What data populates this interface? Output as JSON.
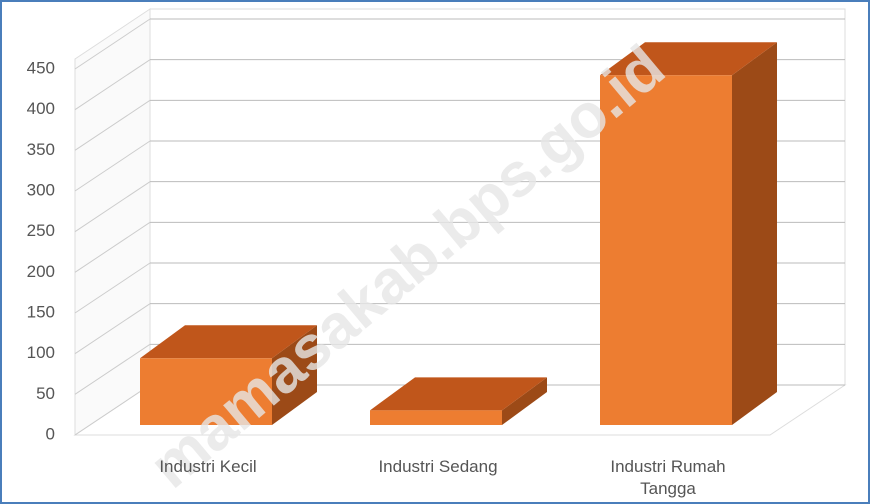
{
  "chart_data": {
    "type": "bar3d",
    "categories": [
      "Industri Kecil",
      "Industri Sedang",
      "Industri Rumah Tangga"
    ],
    "values": [
      82,
      18,
      430
    ],
    "color": "#ed7d31",
    "ylim": [
      0,
      450
    ],
    "yticks": [
      0,
      50,
      100,
      150,
      200,
      250,
      300,
      350,
      400,
      450
    ],
    "grid": true,
    "watermark": "mamasakab.bps.go.id"
  }
}
